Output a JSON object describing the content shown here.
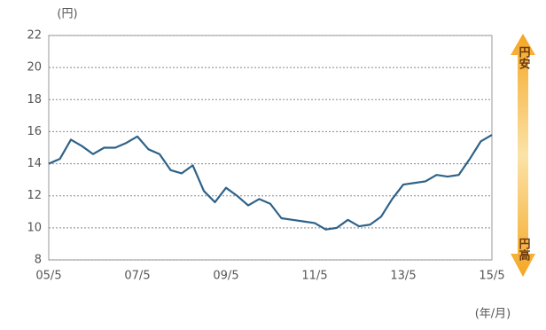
{
  "chart_data": {
    "type": "line",
    "y_unit": "(円)",
    "x_unit": "(年/月)",
    "annotations": [
      "円安",
      "円高"
    ],
    "categories": [
      "05/5",
      null,
      null,
      null,
      null,
      null,
      null,
      null,
      "07/5",
      null,
      null,
      null,
      null,
      null,
      null,
      null,
      "09/5",
      null,
      null,
      null,
      null,
      null,
      null,
      null,
      "11/5",
      null,
      null,
      null,
      null,
      null,
      null,
      null,
      "13/5",
      null,
      null,
      null,
      null,
      null,
      null,
      null,
      "15/5"
    ],
    "series": [
      {
        "color": "#2e6289",
        "values": [
          14.0,
          14.3,
          15.5,
          15.1,
          14.6,
          15.0,
          15.0,
          15.3,
          15.7,
          14.9,
          14.6,
          13.6,
          13.4,
          13.9,
          12.3,
          11.6,
          12.5,
          12.0,
          11.4,
          11.8,
          11.5,
          10.6,
          10.5,
          10.4,
          10.3,
          9.9,
          10.0,
          10.5,
          10.1,
          10.2,
          10.7,
          11.8,
          12.7,
          12.8,
          12.9,
          13.3,
          13.2,
          13.3,
          14.3,
          15.4,
          15.8
        ]
      }
    ],
    "ylim": [
      8,
      22
    ],
    "yticks": [
      8,
      10,
      12,
      14,
      16,
      18,
      20,
      22
    ],
    "grid": true
  }
}
